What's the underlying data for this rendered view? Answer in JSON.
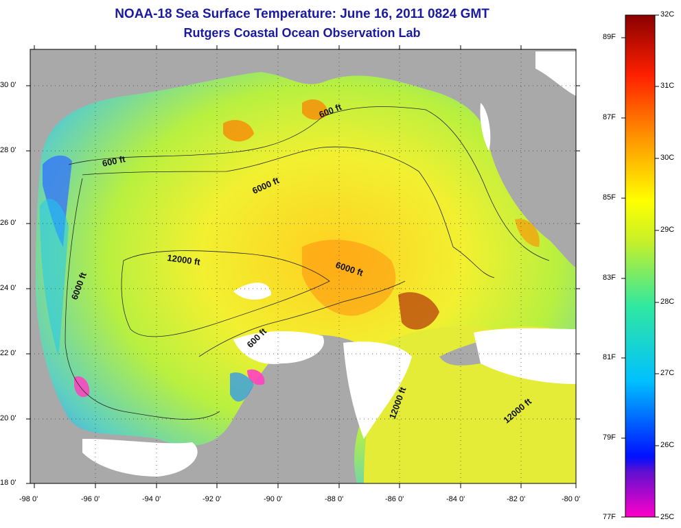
{
  "title": "NOAA-18 Sea Surface Temperature:  June 16, 2011 0824 GMT",
  "subtitle": "Rutgers Coastal Ocean Observation Lab",
  "lon_ticks": [
    "-98 0'",
    "-96 0'",
    "-94 0'",
    "-92 0'",
    "-90 0'",
    "-88 0'",
    "-86 0'",
    "-84 0'",
    "-82 0'",
    "-80 0'"
  ],
  "lat_ticks": [
    "30 0'",
    "28 0'",
    "26 0'",
    "24 0'",
    "22 0'",
    "20 0'",
    "18 0'"
  ],
  "contour_labels": [
    "600 ft",
    "600 ft",
    "6000 ft",
    "12000 ft",
    "6000 ft",
    "6000 ft",
    "600 ft",
    "12000 ft",
    "12000 ft"
  ],
  "colorbar": {
    "fahrenheit_labels": [
      "89F",
      "87F",
      "85F",
      "83F",
      "81F",
      "79F",
      "77F"
    ],
    "celsius_labels": [
      "32C",
      "31C",
      "30C",
      "29C",
      "28C",
      "27C",
      "26C",
      "25C"
    ]
  },
  "colors": {
    "title": "#1a1aa0",
    "land": "#a9a9a9",
    "cloud": "#ffffff",
    "sst_cool": "#3fa0ff",
    "sst_mid": "#e8f020",
    "sst_warm": "#ff7a00",
    "sst_hot": "#a00000"
  }
}
